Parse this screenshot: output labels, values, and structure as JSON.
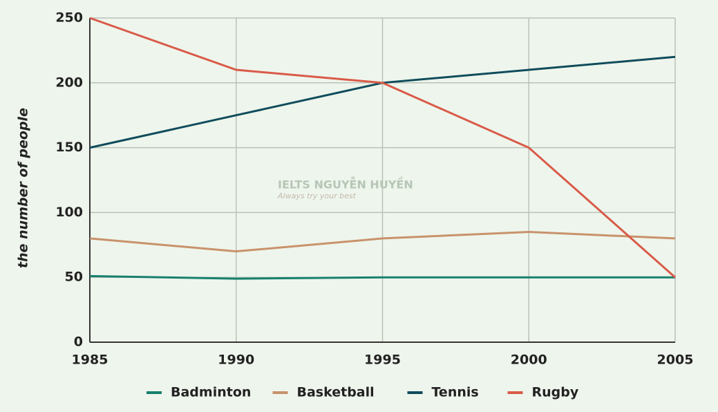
{
  "chart_data": {
    "type": "line",
    "y_label": "the number of people",
    "x": [
      1985,
      1990,
      1995,
      2000,
      2005
    ],
    "xlim": [
      1985,
      2005
    ],
    "xticks": [
      1985,
      1990,
      1995,
      2000,
      2005
    ],
    "ylim": [
      0,
      250
    ],
    "yticks": [
      0,
      50,
      100,
      150,
      200,
      250
    ],
    "grid": true,
    "legend": "bottom",
    "series": [
      {
        "name": "Badminton",
        "color": "#17806d",
        "values": [
          51,
          49,
          50,
          50,
          50
        ]
      },
      {
        "name": "Basketball",
        "color": "#c8926b",
        "values": [
          80,
          70,
          80,
          85,
          80
        ]
      },
      {
        "name": "Tennis",
        "color": "#0f4c5c",
        "values": [
          150,
          175,
          200,
          210,
          220
        ]
      },
      {
        "name": "Rugby",
        "color": "#d95a48",
        "values": [
          250,
          210,
          200,
          150,
          50
        ]
      }
    ],
    "watermark": {
      "title": "IELTS NGUYỄN HUYỀN",
      "subtitle": "Always try your best"
    }
  }
}
